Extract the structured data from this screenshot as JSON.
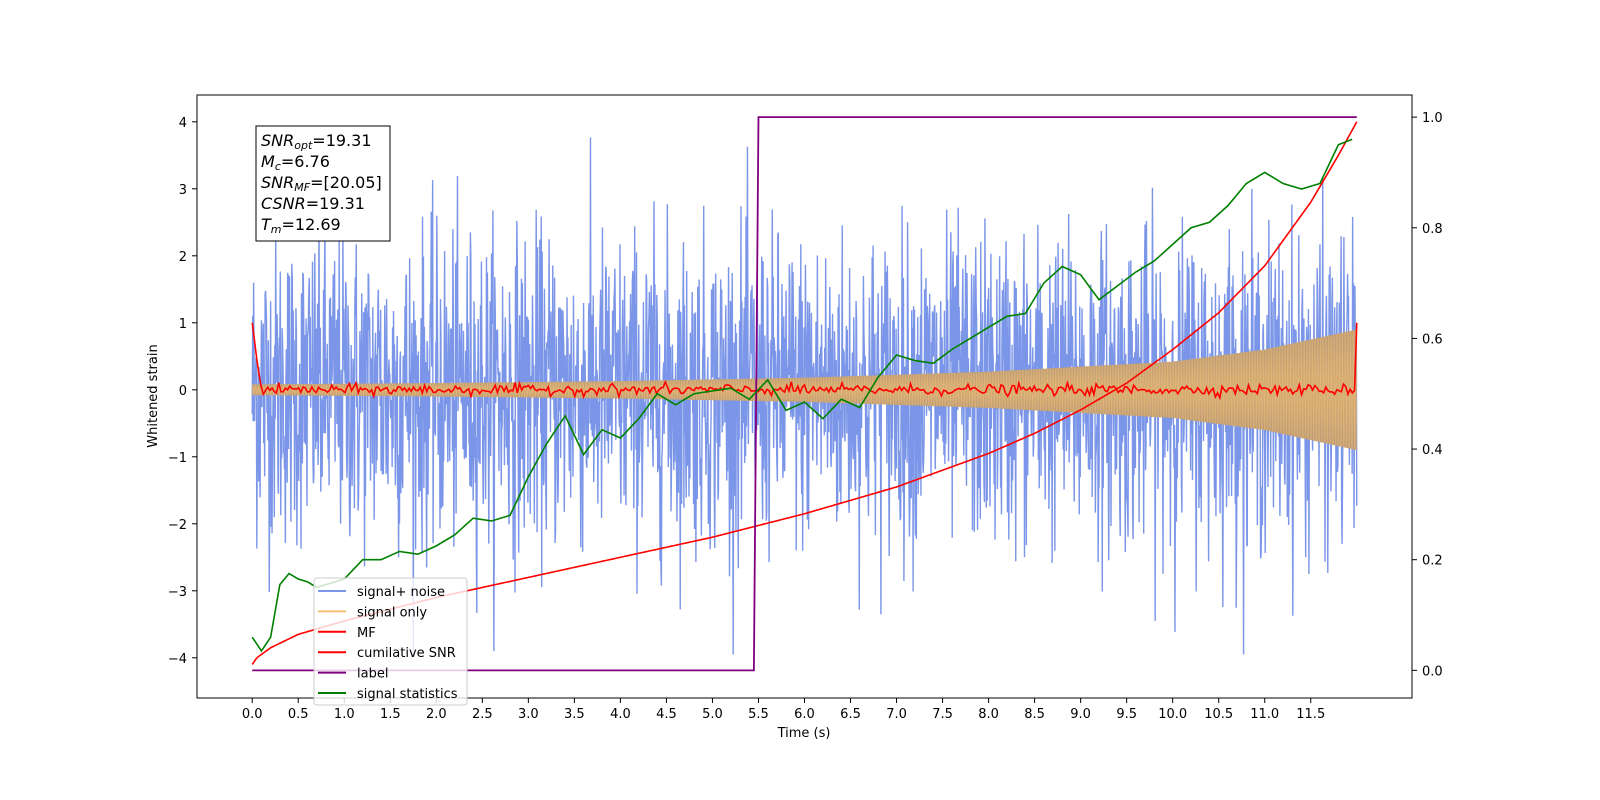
{
  "chart_data": {
    "type": "line",
    "xlabel": "Time (s)",
    "ylabel": "Whitened strain",
    "y2label": "",
    "xlim": [
      -0.6,
      12.6
    ],
    "ylim": [
      -4.6,
      4.4
    ],
    "y2lim": [
      -0.05,
      1.04
    ],
    "x_ticks": [
      0.0,
      0.5,
      1.0,
      1.5,
      2.0,
      2.5,
      3.0,
      3.5,
      4.0,
      4.5,
      5.0,
      5.5,
      6.0,
      6.5,
      7.0,
      7.5,
      8.0,
      8.5,
      9.0,
      9.5,
      10.0,
      10.5,
      11.0,
      11.5
    ],
    "x_tick_labels": [
      "0.0",
      "0.5",
      "1.0",
      "1.5",
      "2.0",
      "2.5",
      "3.0",
      "3.5",
      "4.0",
      "4.5",
      "5.0",
      "5.5",
      "6.0",
      "6.5",
      "7.0",
      "7.5",
      "8.0",
      "8.5",
      "9.0",
      "9.5",
      "10.0",
      "10.5",
      "11.0",
      "11.5"
    ],
    "y_ticks": [
      -4,
      -3,
      -2,
      -1,
      0,
      1,
      2,
      3,
      4
    ],
    "y_tick_labels": [
      "−4",
      "−3",
      "−2",
      "−1",
      "0",
      "1",
      "2",
      "3",
      "4"
    ],
    "y2_ticks": [
      0.0,
      0.2,
      0.4,
      0.6,
      0.8,
      1.0
    ],
    "y2_tick_labels": [
      "0.0",
      "0.2",
      "0.4",
      "0.6",
      "0.8",
      "1.0"
    ],
    "legend_position": "lower-left",
    "grid": false,
    "colors": {
      "signal_noise": "#7b96e8",
      "signal_only": "#f5c272",
      "signal_fill": "#b99a78",
      "mf": "#ff0000",
      "cumulative_snr": "#ff0000",
      "label": "#800080",
      "signal_statistics": "#008000"
    },
    "annotations": [
      {
        "name": "SNR",
        "sub": "opt",
        "value": "=19.31"
      },
      {
        "name": "M",
        "sub": "c",
        "value": "=6.76"
      },
      {
        "name": "SNR",
        "sub": "MF",
        "value": "=[20.05]"
      },
      {
        "name": "CSNR",
        "sub": "",
        "value": "=19.31"
      },
      {
        "name": "T",
        "sub": "m",
        "value": "=12.69"
      }
    ],
    "series": [
      {
        "name": "signal+ noise",
        "axis": "left",
        "style": "noise",
        "x_range": [
          0.0,
          12.0
        ],
        "amplitude_range": [
          -3.95,
          4.0
        ]
      },
      {
        "name": "signal only",
        "axis": "left",
        "style": "chirp",
        "x_range": [
          0.0,
          12.0
        ],
        "envelope": {
          "x": [
            0.0,
            2.0,
            4.0,
            6.0,
            8.0,
            10.0,
            11.0,
            12.0
          ],
          "y": [
            0.08,
            0.1,
            0.13,
            0.18,
            0.27,
            0.42,
            0.6,
            0.9
          ]
        }
      },
      {
        "name": "MF",
        "axis": "left",
        "style": "jitter",
        "x_range": [
          0.0,
          12.0
        ],
        "start_value": 1.0,
        "end_value": 1.0,
        "baseline": 0.0
      },
      {
        "name": "cumilative SNR",
        "axis": "left",
        "x": [
          0.0,
          0.05,
          0.2,
          0.5,
          1.0,
          2.0,
          3.0,
          4.0,
          5.0,
          6.0,
          7.0,
          8.0,
          8.5,
          9.0,
          9.5,
          10.0,
          10.5,
          11.0,
          11.5,
          11.8,
          12.0
        ],
        "y": [
          -4.1,
          -4.0,
          -3.85,
          -3.65,
          -3.45,
          -3.1,
          -2.8,
          -2.5,
          -2.2,
          -1.85,
          -1.45,
          -0.95,
          -0.65,
          -0.3,
          0.1,
          0.6,
          1.15,
          1.85,
          2.8,
          3.5,
          4.0
        ]
      },
      {
        "name": "label",
        "axis": "right",
        "x": [
          0.0,
          5.45,
          5.5,
          12.0
        ],
        "y": [
          0.0,
          0.0,
          1.0,
          1.0
        ]
      },
      {
        "name": "signal statistics",
        "axis": "right",
        "x": [
          0.0,
          0.1,
          0.2,
          0.3,
          0.4,
          0.5,
          0.6,
          0.7,
          0.8,
          0.9,
          1.0,
          1.2,
          1.4,
          1.6,
          1.8,
          2.0,
          2.2,
          2.4,
          2.6,
          2.8,
          3.0,
          3.2,
          3.4,
          3.6,
          3.8,
          4.0,
          4.2,
          4.4,
          4.6,
          4.8,
          5.0,
          5.2,
          5.4,
          5.6,
          5.8,
          6.0,
          6.2,
          6.4,
          6.6,
          6.8,
          7.0,
          7.2,
          7.4,
          7.6,
          7.8,
          8.0,
          8.2,
          8.4,
          8.6,
          8.8,
          9.0,
          9.2,
          9.4,
          9.6,
          9.8,
          10.0,
          10.2,
          10.4,
          10.6,
          10.8,
          11.0,
          11.2,
          11.4,
          11.6,
          11.8,
          11.95
        ],
        "y": [
          0.06,
          0.035,
          0.06,
          0.155,
          0.175,
          0.165,
          0.16,
          0.15,
          0.155,
          0.16,
          0.165,
          0.2,
          0.2,
          0.215,
          0.21,
          0.225,
          0.245,
          0.275,
          0.27,
          0.28,
          0.35,
          0.41,
          0.46,
          0.39,
          0.435,
          0.42,
          0.455,
          0.5,
          0.48,
          0.5,
          0.505,
          0.51,
          0.49,
          0.525,
          0.47,
          0.485,
          0.455,
          0.49,
          0.475,
          0.53,
          0.57,
          0.56,
          0.555,
          0.58,
          0.6,
          0.62,
          0.64,
          0.645,
          0.7,
          0.73,
          0.715,
          0.67,
          0.695,
          0.72,
          0.74,
          0.77,
          0.8,
          0.81,
          0.84,
          0.88,
          0.9,
          0.88,
          0.87,
          0.88,
          0.95,
          0.96
        ]
      }
    ]
  }
}
